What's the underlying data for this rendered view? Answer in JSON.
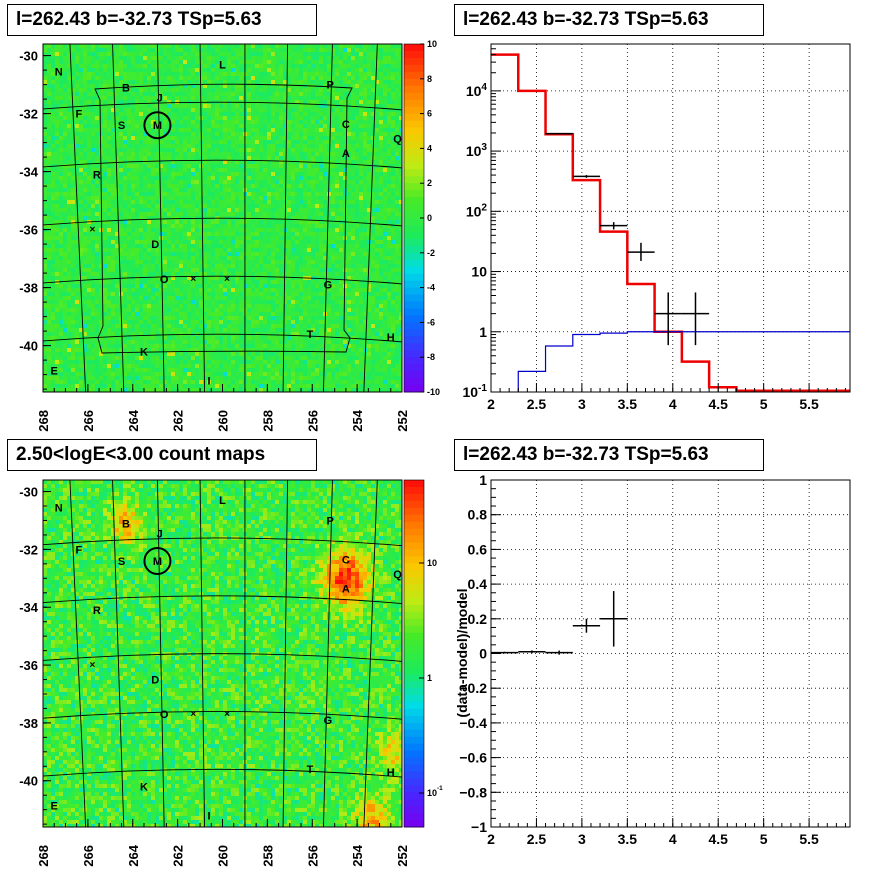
{
  "panels": {
    "top_left_title": "l=262.43 b=-32.73 TSp=5.63",
    "top_right_title": "l=262.43 b=-32.73 TSp=5.63",
    "bottom_left_title": "2.50<logE<3.00 count maps",
    "bottom_right_title": "l=262.43 b=-32.73 TSp=5.63"
  },
  "colors": {
    "model_line": "#ee0000",
    "background_line": "#0000cc",
    "data_points": "#000000",
    "map_base": "#2ee84a"
  },
  "chart_data": [
    {
      "type": "heatmap",
      "name": "residual-map",
      "x_ticks": [
        "268",
        "266",
        "264",
        "262",
        "260",
        "258",
        "256",
        "254",
        "252"
      ],
      "y_ticks": [
        "-30",
        "-32",
        "-34",
        "-36",
        "-38",
        "-40"
      ],
      "xlim": [
        268,
        252
      ],
      "ylim": [
        -41.6,
        -29.6
      ],
      "colorbar": {
        "min": -10,
        "max": 10,
        "ticks": [
          "10",
          "8",
          "6",
          "4",
          "2",
          "0",
          "-2",
          "-4",
          "-6",
          "-8",
          "-10"
        ]
      },
      "source_labels": [
        {
          "label": "N",
          "l": 267.3,
          "b": -30.55
        },
        {
          "label": "L",
          "l": 260.0,
          "b": -30.3
        },
        {
          "label": "B",
          "l": 264.3,
          "b": -31.1
        },
        {
          "label": "J",
          "l": 262.8,
          "b": -31.45
        },
        {
          "label": "P",
          "l": 255.2,
          "b": -31.0
        },
        {
          "label": "F",
          "l": 266.4,
          "b": -32.0
        },
        {
          "label": "M",
          "l": 262.9,
          "b": -32.4
        },
        {
          "label": "S",
          "l": 264.5,
          "b": -32.4
        },
        {
          "label": "C",
          "l": 254.5,
          "b": -32.35
        },
        {
          "label": "Q",
          "l": 252.2,
          "b": -32.85
        },
        {
          "label": "A",
          "l": 254.5,
          "b": -33.35
        },
        {
          "label": "R",
          "l": 265.6,
          "b": -34.1
        },
        {
          "label": "D",
          "l": 263.0,
          "b": -36.5
        },
        {
          "label": "O",
          "l": 262.6,
          "b": -37.7
        },
        {
          "label": "G",
          "l": 255.3,
          "b": -37.9
        },
        {
          "label": "T",
          "l": 256.1,
          "b": -39.6
        },
        {
          "label": "H",
          "l": 252.5,
          "b": -39.7
        },
        {
          "label": "K",
          "l": 263.5,
          "b": -40.2
        },
        {
          "label": "E",
          "l": 267.5,
          "b": -40.85
        },
        {
          "label": "I",
          "l": 260.6,
          "b": -41.2
        }
      ],
      "source_center": {
        "l": 262.9,
        "b": -32.4
      }
    },
    {
      "type": "line",
      "name": "spectrum",
      "x_ticks": [
        "2",
        "2.5",
        "3",
        "3.5",
        "4",
        "4.5",
        "5",
        "5.5"
      ],
      "y_ticks": [
        "10^-1",
        "1",
        "10",
        "10^2",
        "10^3",
        "10^4"
      ],
      "xlim": [
        2,
        5.95
      ],
      "ylim": [
        0.1,
        60000
      ],
      "y_scale": "log",
      "series": [
        {
          "role": "model",
          "steps": [
            {
              "x0": 2.0,
              "x1": 2.3,
              "y": 40000
            },
            {
              "x0": 2.3,
              "x1": 2.6,
              "y": 10000
            },
            {
              "x0": 2.6,
              "x1": 2.9,
              "y": 1900
            },
            {
              "x0": 2.9,
              "x1": 3.2,
              "y": 330
            },
            {
              "x0": 3.2,
              "x1": 3.5,
              "y": 46
            },
            {
              "x0": 3.5,
              "x1": 3.8,
              "y": 6.2
            },
            {
              "x0": 3.8,
              "x1": 4.1,
              "y": 1.0
            },
            {
              "x0": 4.1,
              "x1": 4.4,
              "y": 0.32
            },
            {
              "x0": 4.4,
              "x1": 4.7,
              "y": 0.12
            },
            {
              "x0": 4.7,
              "x1": 5.95,
              "y": 0.105
            }
          ]
        },
        {
          "role": "background",
          "steps": [
            {
              "x0": 2.3,
              "x1": 2.6,
              "y": 0.22
            },
            {
              "x0": 2.6,
              "x1": 2.9,
              "y": 0.58
            },
            {
              "x0": 2.9,
              "x1": 3.2,
              "y": 0.9
            },
            {
              "x0": 3.2,
              "x1": 3.5,
              "y": 0.95
            },
            {
              "x0": 3.5,
              "x1": 5.95,
              "y": 1.0
            }
          ]
        }
      ],
      "points": [
        {
          "x": 2.75,
          "xerr": 0.15,
          "y": 1950,
          "ylo": 1950,
          "yhi": 1950
        },
        {
          "x": 3.05,
          "xerr": 0.15,
          "y": 380,
          "ylo": 360,
          "yhi": 400
        },
        {
          "x": 3.35,
          "xerr": 0.15,
          "y": 58,
          "ylo": 50,
          "yhi": 66
        },
        {
          "x": 3.65,
          "xerr": 0.15,
          "y": 21,
          "ylo": 15,
          "yhi": 30
        },
        {
          "x": 3.95,
          "xerr": 0.15,
          "y": 2.0,
          "ylo": 0.6,
          "yhi": 4.5
        },
        {
          "x": 4.25,
          "xerr": 0.15,
          "y": 2.0,
          "ylo": 0.6,
          "yhi": 4.5
        }
      ]
    },
    {
      "type": "heatmap",
      "name": "count-map",
      "x_ticks": [
        "268",
        "266",
        "264",
        "262",
        "260",
        "258",
        "256",
        "254",
        "252"
      ],
      "y_ticks": [
        "-30",
        "-32",
        "-34",
        "-36",
        "-38",
        "-40"
      ],
      "xlim": [
        268,
        252
      ],
      "ylim": [
        -41.6,
        -29.6
      ],
      "colorbar": {
        "scale": "log",
        "ticks": [
          "10",
          "1",
          "10^-1"
        ]
      },
      "bright_spots": [
        {
          "l": 254.5,
          "b": -33.0,
          "strength": 1.0,
          "radius": 1.0
        },
        {
          "l": 264.3,
          "b": -31.1,
          "strength": 0.6,
          "radius": 0.7
        },
        {
          "l": 253.3,
          "b": -41.3,
          "strength": 0.6,
          "radius": 0.8
        },
        {
          "l": 252.3,
          "b": -39.0,
          "strength": 0.5,
          "radius": 0.7
        }
      ]
    },
    {
      "type": "scatter",
      "name": "residuals",
      "ylabel": "(data-model)/model",
      "x_ticks": [
        "2",
        "2.5",
        "3",
        "3.5",
        "4",
        "4.5",
        "5",
        "5.5"
      ],
      "y_ticks": [
        "1",
        "0.8",
        "0.6",
        "0.4",
        "0.2",
        "0",
        "−0.2",
        "−0.4",
        "−0.6",
        "−0.8",
        "−1"
      ],
      "xlim": [
        2,
        5.95
      ],
      "ylim": [
        -1,
        1
      ],
      "points": [
        {
          "x": 2.15,
          "xerr": 0.15,
          "y": 0.005,
          "yerr": 0.005
        },
        {
          "x": 2.45,
          "xerr": 0.15,
          "y": 0.01,
          "yerr": 0.008
        },
        {
          "x": 2.75,
          "xerr": 0.15,
          "y": 0.005,
          "yerr": 0.012
        },
        {
          "x": 3.05,
          "xerr": 0.15,
          "y": 0.16,
          "yerr": 0.04
        },
        {
          "x": 3.35,
          "xerr": 0.15,
          "y": 0.2,
          "yerr": 0.16
        }
      ]
    }
  ]
}
